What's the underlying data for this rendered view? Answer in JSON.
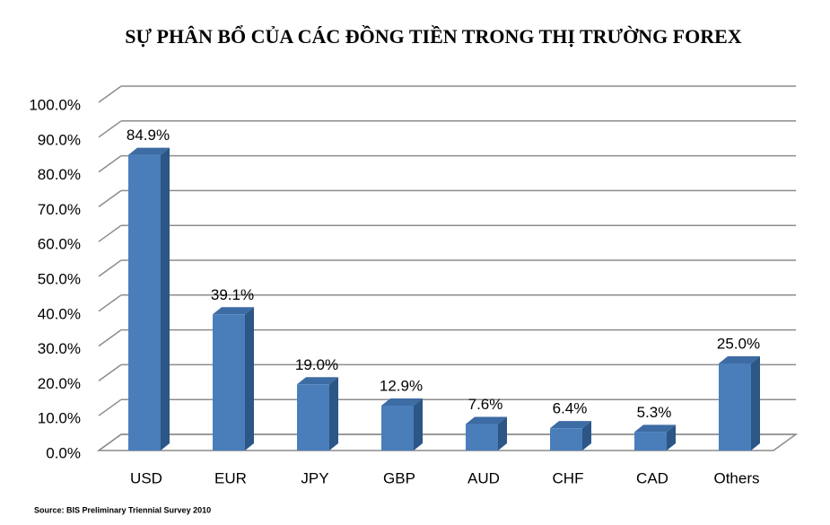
{
  "chart_data": {
    "type": "bar",
    "title": "SỰ PHÂN BỔ CỦA CÁC ĐỒNG TIỀN TRONG THỊ TRƯỜNG FOREX",
    "source": "Source: BIS Preliminary Triennial Survey  2010",
    "categories": [
      "USD",
      "EUR",
      "JPY",
      "GBP",
      "AUD",
      "CHF",
      "CAD",
      "Others"
    ],
    "values": [
      84.9,
      39.1,
      19.0,
      12.9,
      7.6,
      6.4,
      5.3,
      25.0
    ],
    "value_labels": [
      "84.9%",
      "39.1%",
      "19.0%",
      "12.9%",
      "7.6%",
      "6.4%",
      "5.3%",
      "25.0%"
    ],
    "color": "#4a7ebb",
    "ylim": [
      0,
      100
    ],
    "yticks": [
      {
        "value": 0,
        "label": "0.0%"
      },
      {
        "value": 10,
        "label": "10.0%"
      },
      {
        "value": 20,
        "label": "20.0%"
      },
      {
        "value": 30,
        "label": "30.0%"
      },
      {
        "value": 40,
        "label": "40.0%"
      },
      {
        "value": 50,
        "label": "50.0%"
      },
      {
        "value": 60,
        "label": "60.0%"
      },
      {
        "value": 70,
        "label": "70.0%"
      },
      {
        "value": 80,
        "label": "80.0%"
      },
      {
        "value": 90,
        "label": "90.0%"
      },
      {
        "value": 100,
        "label": "100.0%"
      }
    ],
    "grid": true
  }
}
